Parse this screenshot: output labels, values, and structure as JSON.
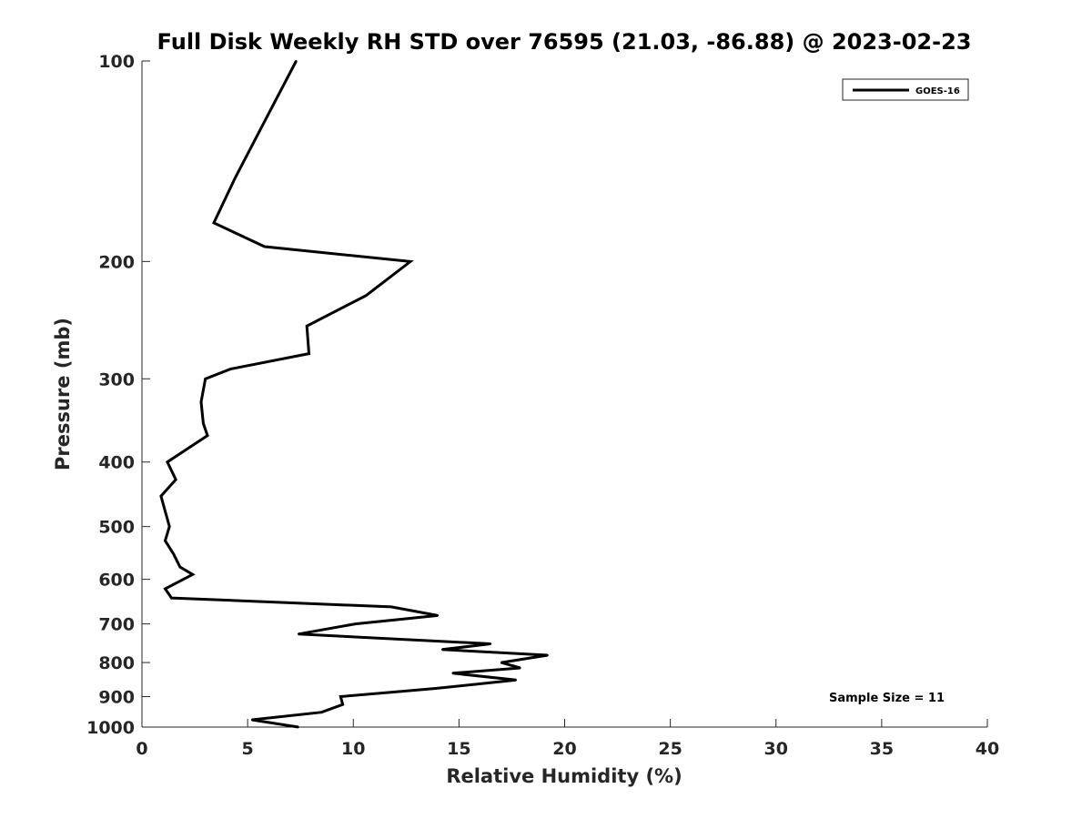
{
  "chart_data": {
    "type": "line",
    "title": "Full Disk Weekly RH STD over 76595 (21.03, -86.88) @ 2023-02-23",
    "xlabel": "Relative Humidity (%)",
    "ylabel": "Pressure (mb)",
    "xlim": [
      0,
      40
    ],
    "ylim": [
      100,
      1000
    ],
    "y_scale": "log",
    "y_reversed": true,
    "x_ticks": [
      0,
      5,
      10,
      15,
      20,
      25,
      30,
      35,
      40
    ],
    "y_ticks": [
      100,
      200,
      300,
      400,
      500,
      600,
      700,
      800,
      900,
      1000
    ],
    "grid": false,
    "legend_position": "top-right",
    "annotation": "Sample Size = 11",
    "series": [
      {
        "name": "GOES-16",
        "color": "#000000",
        "points": [
          [
            7.3,
            100
          ],
          [
            5.7,
            125
          ],
          [
            4.4,
            150
          ],
          [
            3.4,
            175
          ],
          [
            5.8,
            190
          ],
          [
            12.7,
            200
          ],
          [
            10.6,
            225
          ],
          [
            7.8,
            250
          ],
          [
            7.9,
            275
          ],
          [
            4.2,
            290
          ],
          [
            3.0,
            300
          ],
          [
            2.8,
            325
          ],
          [
            2.9,
            350
          ],
          [
            3.1,
            365
          ],
          [
            1.2,
            400
          ],
          [
            1.6,
            425
          ],
          [
            0.9,
            450
          ],
          [
            1.3,
            500
          ],
          [
            1.1,
            525
          ],
          [
            1.5,
            550
          ],
          [
            1.8,
            575
          ],
          [
            2.4,
            590
          ],
          [
            1.1,
            620
          ],
          [
            1.4,
            640
          ],
          [
            11.8,
            660
          ],
          [
            14.0,
            680
          ],
          [
            10.1,
            700
          ],
          [
            7.4,
            725
          ],
          [
            16.5,
            750
          ],
          [
            14.2,
            765
          ],
          [
            19.2,
            780
          ],
          [
            17.0,
            800
          ],
          [
            17.9,
            815
          ],
          [
            14.7,
            830
          ],
          [
            17.7,
            850
          ],
          [
            13.9,
            875
          ],
          [
            9.4,
            900
          ],
          [
            9.5,
            925
          ],
          [
            8.5,
            950
          ],
          [
            5.2,
            975
          ],
          [
            7.4,
            1000
          ]
        ]
      }
    ]
  }
}
